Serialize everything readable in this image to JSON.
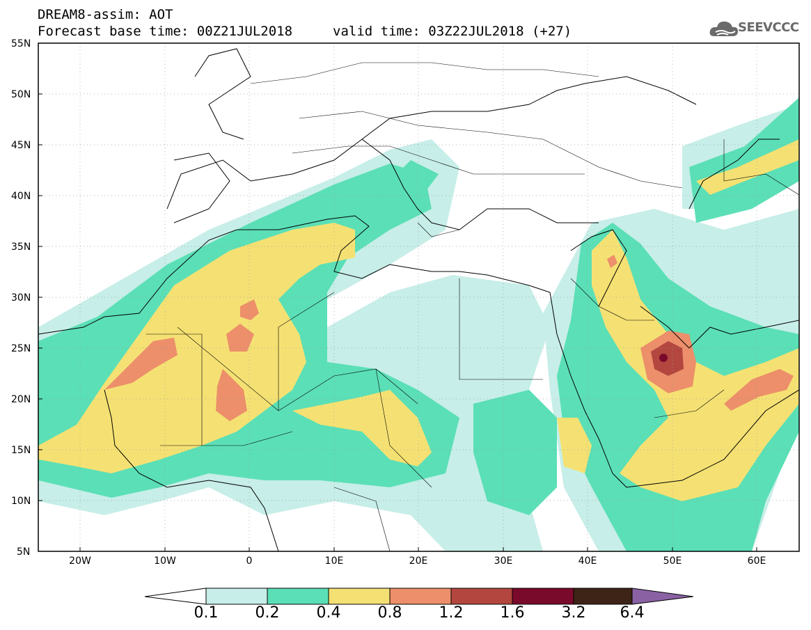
{
  "header": {
    "line1": "DREAM8-assim: AOT",
    "line2_left": "Forecast base time: 00Z21JUL2018",
    "line2_right": "valid time: 03Z22JUL2018 (+27)"
  },
  "logo": {
    "text": "SEEVCCC",
    "icon": "cloud-icon",
    "color": "#6a6a6a"
  },
  "axes": {
    "lat_labels": [
      "55N",
      "50N",
      "45N",
      "40N",
      "35N",
      "30N",
      "25N",
      "20N",
      "15N",
      "10N",
      "5N"
    ],
    "lon_labels": [
      "20W",
      "10W",
      "0",
      "10E",
      "20E",
      "30E",
      "40E",
      "50E",
      "60E"
    ]
  },
  "colorbar": {
    "levels": [
      "0.1",
      "0.2",
      "0.4",
      "0.8",
      "1.2",
      "1.6",
      "3.2",
      "6.4"
    ],
    "colors": [
      "#ffffff",
      "#c7eee8",
      "#5bdfb6",
      "#f5e173",
      "#ec8f6a",
      "#b3473f",
      "#7a0a2c",
      "#3d2416",
      "#8a62a4"
    ]
  }
}
